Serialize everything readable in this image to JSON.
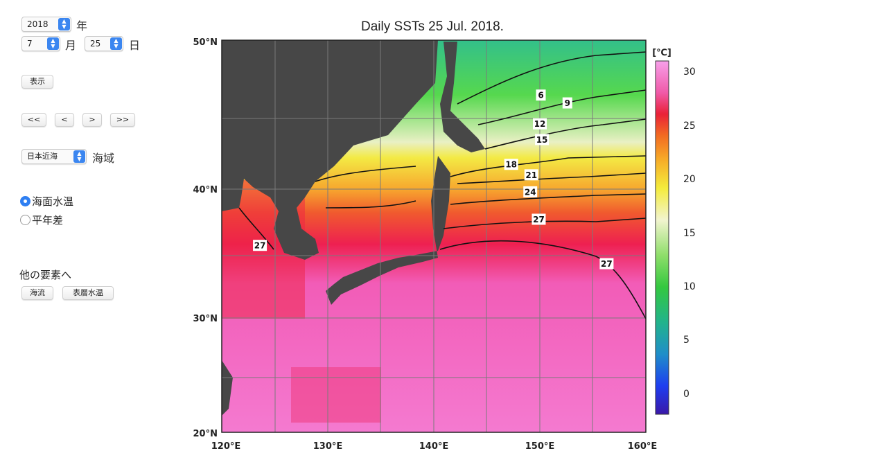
{
  "controls": {
    "year": "2018",
    "year_unit": "年",
    "month": "7",
    "month_unit": "月",
    "day": "25",
    "day_unit": "日",
    "show_button": "表示",
    "nav": [
      "<<",
      "<",
      ">",
      ">>"
    ],
    "area": "日本近海",
    "area_unit": "海域",
    "radio_sst": "海面水温",
    "radio_anomaly": "平年差",
    "other_heading": "他の要素へ",
    "current_button": "海流",
    "subsurface_button": "表層水温"
  },
  "map": {
    "title": "Daily SSTs 25 Jul. 2018.",
    "lat_labels": [
      "50°N",
      "40°N",
      "30°N",
      "20°N"
    ],
    "lon_labels": [
      "120°E",
      "130°E",
      "140°E",
      "150°E",
      "160°E"
    ],
    "extent": {
      "lon": [
        120,
        160
      ],
      "lat": [
        20,
        50
      ]
    },
    "isotherm_labels": [
      {
        "text": "6",
        "lon": 150.1,
        "lat": 45.8
      },
      {
        "text": "9",
        "lon": 152.6,
        "lat": 45.2
      },
      {
        "text": "12",
        "lon": 150.0,
        "lat": 43.6
      },
      {
        "text": "15",
        "lon": 150.2,
        "lat": 42.4
      },
      {
        "text": "18",
        "lon": 147.3,
        "lat": 40.5
      },
      {
        "text": "21",
        "lon": 149.2,
        "lat": 39.7
      },
      {
        "text": "24",
        "lon": 149.1,
        "lat": 38.4
      },
      {
        "text": "27",
        "lon": 149.9,
        "lat": 36.3
      },
      {
        "text": "27",
        "lon": 156.3,
        "lat": 32.9
      },
      {
        "text": "27",
        "lon": 123.6,
        "lat": 34.3
      }
    ],
    "colorbar": {
      "unit": "[℃]",
      "ticks": [
        "30",
        "25",
        "20",
        "15",
        "10",
        "5",
        "0"
      ],
      "range": [
        -2,
        31
      ]
    }
  }
}
